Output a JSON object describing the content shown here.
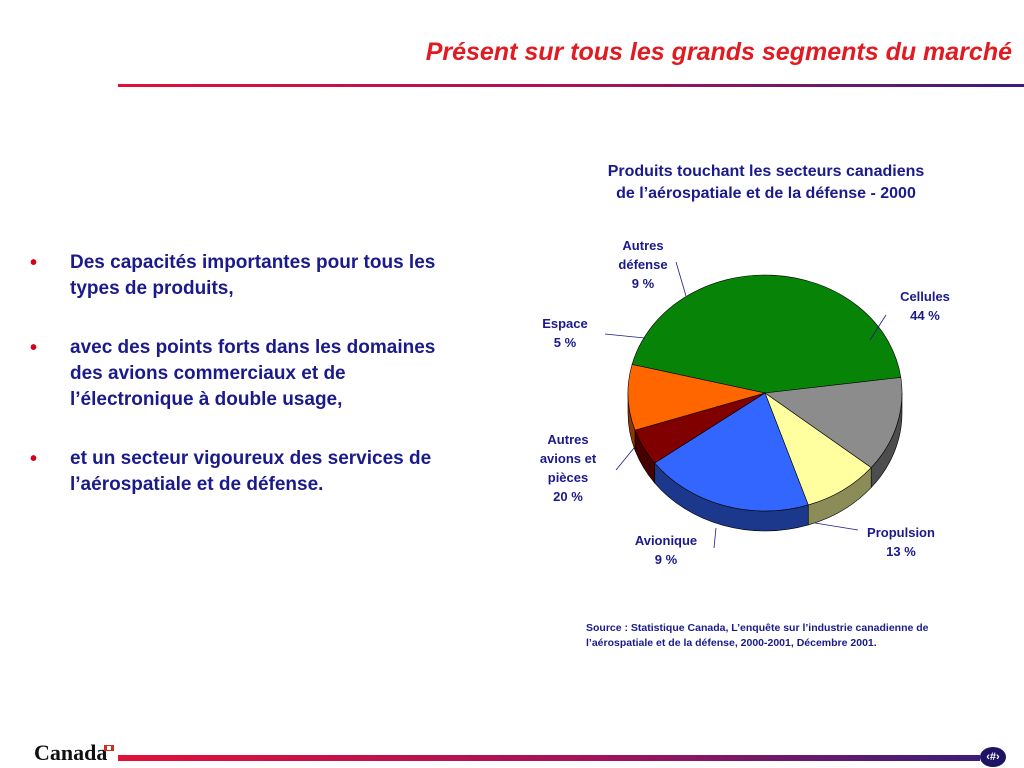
{
  "slide": {
    "title": "Présent sur tous les grands segments du marché",
    "bullets": [
      "Des capacités importantes pour tous les types de produits,",
      "avec des points forts dans les domaines des avions commerciaux et de l’électronique à double usage,",
      "et un secteur vigoureux des services de l’aérospatiale et de défense."
    ],
    "bullet_marker": "•",
    "source_note": "Source : Statistique Canada, L’enquête sur l’industrie canadienne de l’aérospatiale et de la défense, 2000-2001, Décembre 2001.",
    "footer_logo": "Canada",
    "page_number": "‹#›"
  },
  "colors": {
    "title_red": "#e01b22",
    "text_navy": "#1a1a8c",
    "flag_red": "#d52b1e"
  },
  "chart_data": {
    "type": "pie",
    "title_lines": [
      "Produits touchant les secteurs canadiens",
      "de l’aérospatiale et de la défense - 2000"
    ],
    "slices": [
      {
        "label_lines": [
          "Cellules",
          "44 %"
        ],
        "value": 44,
        "color": "#078407"
      },
      {
        "label_lines": [
          "Propulsion",
          "13 %"
        ],
        "value": 13,
        "color": "#8c8c8c"
      },
      {
        "label_lines": [
          "Avionique",
          "9 %"
        ],
        "value": 9,
        "color": "#ffffa0"
      },
      {
        "label_lines": [
          "Autres",
          "avions et",
          "pièces",
          "20 %"
        ],
        "value": 20,
        "color": "#3366ff"
      },
      {
        "label_lines": [
          "Espace",
          "5 %"
        ],
        "value": 5,
        "color": "#800000"
      },
      {
        "label_lines": [
          "Autres",
          "défense",
          "9 %"
        ],
        "value": 9,
        "color": "#ff6600"
      }
    ]
  }
}
